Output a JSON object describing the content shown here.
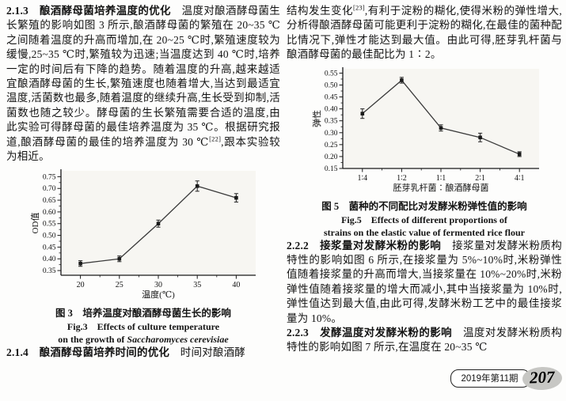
{
  "left_column": {
    "sec213": {
      "heading": "2.1.3　酿酒酵母菌培养温度的优化",
      "body_a": "　温度对酿酒酵母菌生长繁殖的影响如图 3 所示,酿酒酵母菌的繁殖在 20~35 ℃之间随着温度的升高而增加,在 20~25 ℃时,繁殖速度较为缓慢,25~35 ℃时,繁殖较为迅速;当温度达到 40 ℃时,培养一定的时间后有下降的趋势。随着温度的升高,越来越适宜酿酒酵母菌的生长,繁殖速度也随着增大,当达到最适宜温度,活菌数也最多,随着温度的继续升高,生长受到抑制,活菌数也随之较少。酵母菌的生长繁殖需要合适的温度,由此实验可得酵母菌的最佳培养温度为 35 ℃。根据研究报道,酿酒酵母菌的最佳的培养温度为 30 ℃",
      "sup": "[22]",
      "body_b": ",跟本实验较为相近。"
    },
    "sec214": {
      "heading": "2.1.4　酿酒酵母菌培养时间的优化",
      "body": "　时间对酿酒酵"
    }
  },
  "right_column": {
    "para_top": {
      "body_a": "结构发生变化",
      "sup": "[23]",
      "body_b": ",有利于淀粉的糊化,使得米粉的弹性增大,分析得酿酒酵母菌可能更利于淀粉的糊化,在最佳的菌种配比情况下,弹性才能达到最大值。由此可得,胚芽乳杆菌与酿酒酵母菌的最佳配比为 1∶2。"
    },
    "sec222": {
      "heading": "2.2.2　接浆量对发酵米粉的影响",
      "body": "　接浆量对发酵米粉质构特性的影响如图 6 所示,在接浆量为 5%~10%时,米粉弹性值随着接浆量的升高而增大,当接浆量在 10%~20%时,米粉弹性值随着接浆量的增大而减小,其中当接浆量为 10%时,弹性值达到最大值,由此可得,发酵米粉工艺中的最佳接浆量为 10%。"
    },
    "sec223": {
      "heading": "2.2.3　发酵温度对发酵米粉的影响",
      "body": "　温度对发酵米粉质构特性的影响如图 7 所示,在温度在 20~35 ℃"
    }
  },
  "figures": {
    "fig3": {
      "caption_cn": "图 3　培养温度对酿酒酵母菌生长的影响",
      "caption_en_line1": "Fig.3　Effects of culture temperature",
      "caption_en_line2_prefix": "on the growth of ",
      "caption_en_line2_species": "Saccharomyces cerevisiae"
    },
    "fig5": {
      "caption_cn": "图 5　菌种的不同配比对发酵米粉弹性值的影响",
      "caption_en_line1": "Fig.5　Effects of different proportions of",
      "caption_en_line2": "strains on the elastic value of fermented rice flour"
    }
  },
  "footer": {
    "issue": "2019年第11期",
    "page_number": "207"
  },
  "chart_data": [
    {
      "id": "fig3",
      "type": "line",
      "title": "培养温度对酿酒酵母菌生长的影响",
      "categories": [
        "20",
        "25",
        "30",
        "35",
        "40"
      ],
      "values": [
        0.38,
        0.4,
        0.55,
        0.71,
        0.66
      ],
      "errors": [
        0.012,
        0.012,
        0.015,
        0.022,
        0.018
      ],
      "xlabel": "温度(℃)",
      "ylabel": "OD值",
      "yticks": [
        0.35,
        0.4,
        0.45,
        0.5,
        0.55,
        0.6,
        0.65,
        0.7,
        0.75
      ],
      "ylim": [
        0.33,
        0.775
      ],
      "grid": false,
      "legend": "none",
      "marker": "square",
      "line_color": "#3a3a3a",
      "marker_color": "#1a1a1a",
      "plot_bg": "#f7f6f2"
    },
    {
      "id": "fig5",
      "type": "line",
      "title": "菌种的不同配比对发酵米粉弹性值的影响",
      "categories": [
        "1∶4",
        "1∶2",
        "1∶1",
        "2∶1",
        "4∶1"
      ],
      "values": [
        0.38,
        0.52,
        0.32,
        0.28,
        0.21
      ],
      "errors": [
        0.02,
        0.012,
        0.013,
        0.018,
        0.01
      ],
      "xlabel": "胚芽乳杆菌∶酿酒酵母菌",
      "ylabel": "弹性",
      "yticks": [
        0.15,
        0.2,
        0.25,
        0.3,
        0.35,
        0.4,
        0.45,
        0.5,
        0.55
      ],
      "ylim": [
        0.15,
        0.568
      ],
      "grid": false,
      "legend": "none",
      "marker": "square",
      "line_color": "#3a3a3a",
      "marker_color": "#1a1a1a",
      "plot_bg": "#f7f6f2"
    }
  ]
}
